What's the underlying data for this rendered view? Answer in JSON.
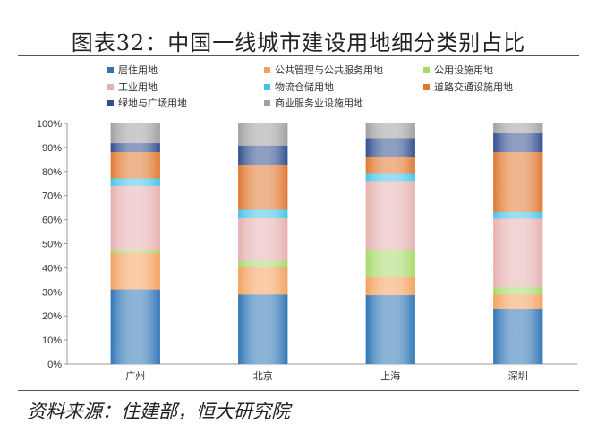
{
  "title": "图表32：中国一线城市建设用地细分类别占比",
  "source": "资料来源：住建部，恒大研究院",
  "chart_data": {
    "type": "bar",
    "stacked": true,
    "title": "图表32：中国一线城市建设用地细分类别占比",
    "categories": [
      "广州",
      "北京",
      "上海",
      "深圳"
    ],
    "ylim": [
      0,
      100
    ],
    "yticks": [
      "0%",
      "10%",
      "20%",
      "30%",
      "40%",
      "50%",
      "60%",
      "70%",
      "80%",
      "90%",
      "100%"
    ],
    "legend_position": "top",
    "series": [
      {
        "name": "居住用地",
        "color": "#2e75b6",
        "values": [
          31.0,
          28.9,
          28.6,
          22.7
        ]
      },
      {
        "name": "公共管理与公共服务用地",
        "color": "#f4a05e",
        "values": [
          15.2,
          11.5,
          7.5,
          6.2
        ]
      },
      {
        "name": "公用设施用地",
        "color": "#a6d96a",
        "values": [
          1.3,
          2.5,
          11.5,
          3.0
        ]
      },
      {
        "name": "工业用地",
        "color": "#e6b0b0",
        "values": [
          26.6,
          17.7,
          28.5,
          28.6
        ]
      },
      {
        "name": "物流仓储用地",
        "color": "#45c3ea",
        "values": [
          3.1,
          3.6,
          3.3,
          2.8
        ]
      },
      {
        "name": "道路交通设施用地",
        "color": "#e07830",
        "values": [
          10.9,
          18.6,
          6.8,
          24.8
        ]
      },
      {
        "name": "绿地与广场用地",
        "color": "#2f4f8f",
        "values": [
          3.7,
          8.0,
          7.7,
          7.8
        ]
      },
      {
        "name": "商业服务业设施用地",
        "color": "#a0a0a0",
        "values": [
          8.2,
          9.2,
          6.1,
          4.1
        ]
      }
    ]
  }
}
